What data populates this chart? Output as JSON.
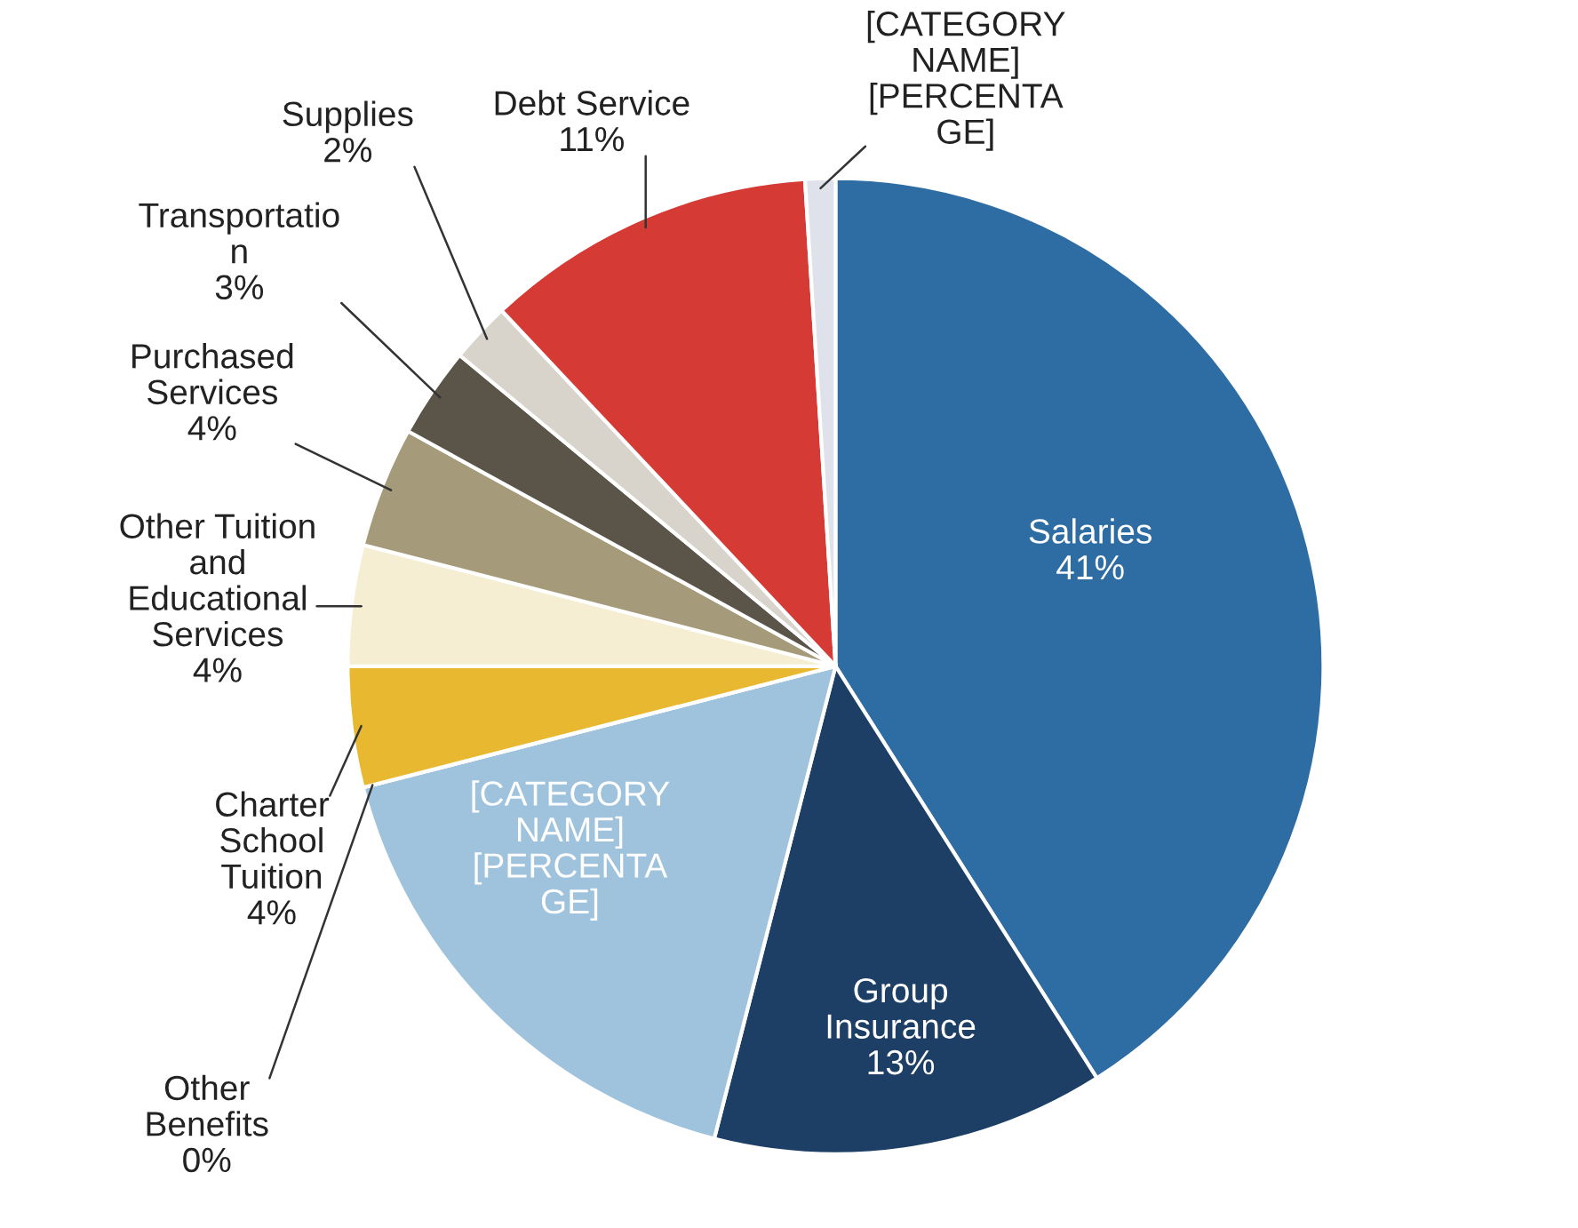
{
  "chart_data": {
    "type": "pie",
    "categories": [
      "Salaries",
      "Group\nInsurance",
      "[CATEGORY\nNAME]",
      "Other\nBenefits",
      "Charter\nSchool\nTuition",
      "Other Tuition\nand\nEducational\nServices",
      "Purchased\nServices",
      "Transportatio\nn",
      "Supplies",
      "Debt Service",
      "[CATEGORY\nNAME]"
    ],
    "values": [
      41,
      13,
      17,
      0,
      4,
      4,
      4,
      3,
      2,
      11,
      1
    ],
    "value_labels": [
      "41%",
      "13%",
      "[PERCENTA\nGE]",
      "0%",
      "4%",
      "4%",
      "4%",
      "3%",
      "2%",
      "11%",
      "[PERCENTA\nGE]"
    ],
    "colors": [
      "#2e6da4",
      "#1d3f66",
      "#9fc3dc",
      "#e8eef4",
      "#e8b830",
      "#f5eed2",
      "#a59a7a",
      "#5a5548",
      "#d8d4cc",
      "#d63a35",
      "#dfe2ea"
    ],
    "legend": false
  }
}
